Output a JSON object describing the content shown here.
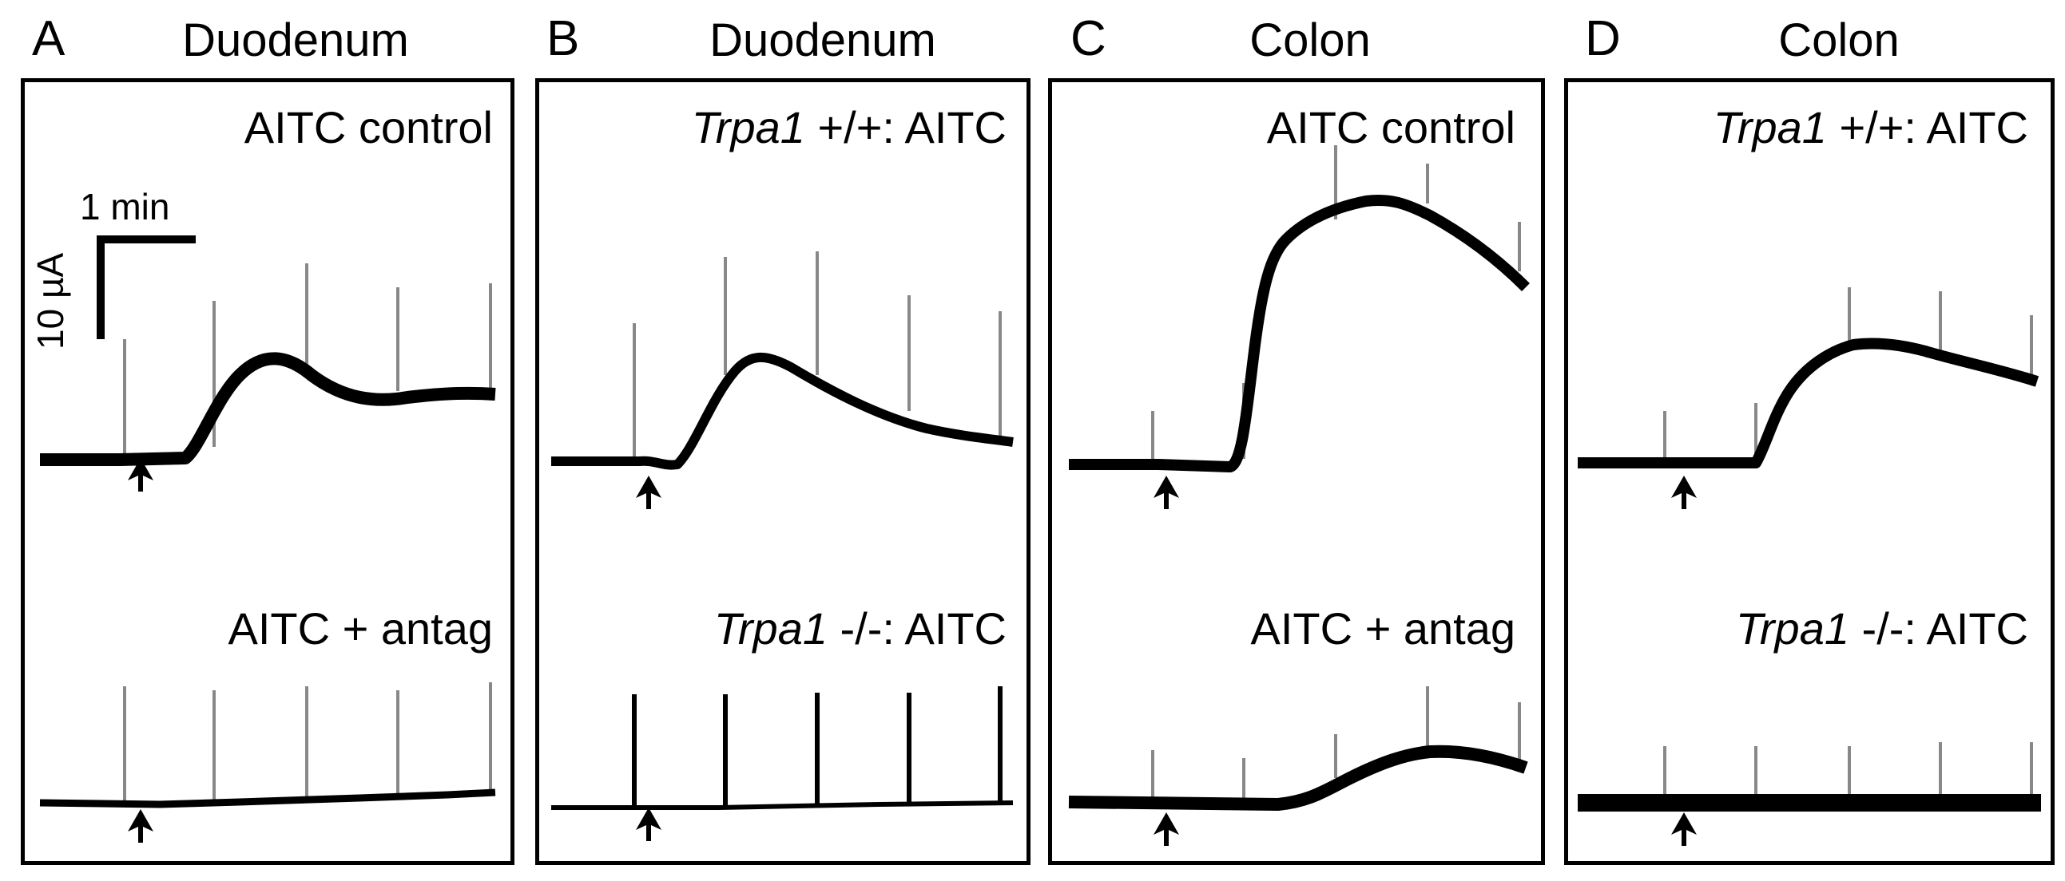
{
  "panels": [
    {
      "letter": "A",
      "region": "Duodenum",
      "top_label": "AITC control",
      "bottom_label": "AITC + antag"
    },
    {
      "letter": "B",
      "region": "Duodenum",
      "top_label_gene": "Trpa1",
      "top_label_rest": " +/+: AITC",
      "bottom_label_gene": "Trpa1",
      "bottom_label_rest": " -/-: AITC"
    },
    {
      "letter": "C",
      "region": "Colon",
      "top_label": "AITC control",
      "bottom_label": "AITC + antag"
    },
    {
      "letter": "D",
      "region": "Colon",
      "top_label_gene": "Trpa1",
      "top_label_rest": " +/+: AITC",
      "bottom_label_gene": "Trpa1",
      "bottom_label_rest": " -/-: AITC"
    }
  ],
  "scale_bar": {
    "time": "1 min",
    "current": "10 µA"
  },
  "colors": {
    "trace": "#000000",
    "spike": "#888888",
    "frame": "#000000"
  }
}
